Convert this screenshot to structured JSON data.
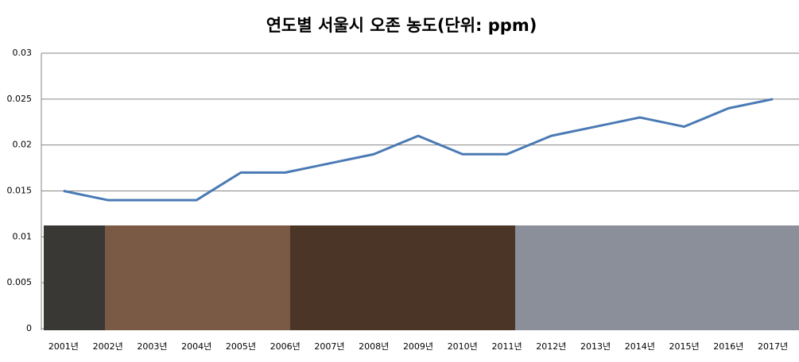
{
  "chart_data": {
    "type": "line",
    "title": "연도별 서울시 오존 농도(단위: ppm)",
    "categories": [
      "2001년",
      "2002년",
      "2003년",
      "2004년",
      "2005년",
      "2006년",
      "2007년",
      "2008년",
      "2009년",
      "2010년",
      "2011년",
      "2012년",
      "2013년",
      "2014년",
      "2015년",
      "2016년",
      "2017년"
    ],
    "series": [
      {
        "color": "#4a7ab4",
        "values": [
          0.015,
          0.014,
          0.014,
          0.014,
          0.017,
          0.017,
          0.018,
          0.019,
          0.021,
          0.019,
          0.019,
          0.021,
          0.022,
          0.023,
          0.022,
          0.024,
          0.025
        ]
      }
    ],
    "ylim": [
      0,
      0.03
    ],
    "yticks": [
      0,
      0.005,
      0.01,
      0.015,
      0.02,
      0.025,
      0.03
    ],
    "grid": true
  }
}
